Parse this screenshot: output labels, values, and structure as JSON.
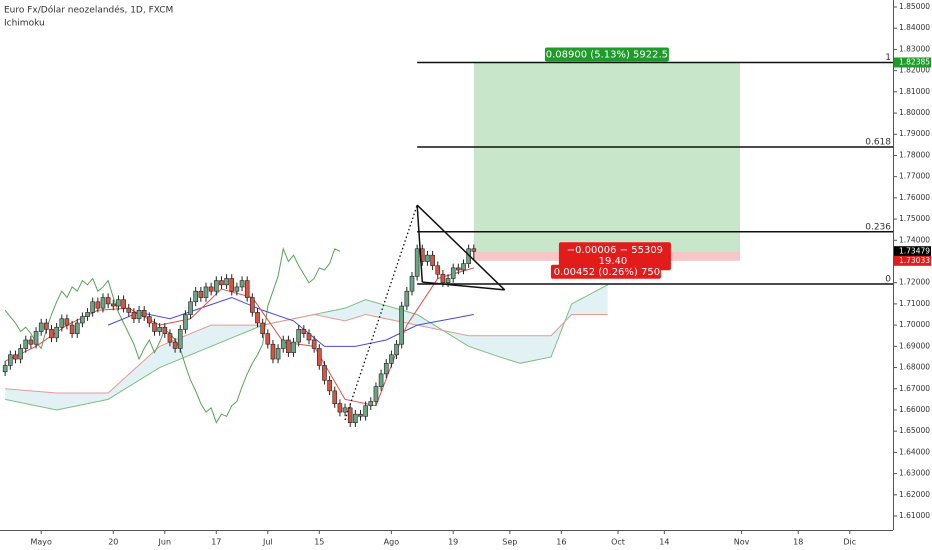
{
  "chart_data": {
    "type": "candlestick",
    "title": "Euro Fx/Dólar neozelandés, 1D, FXCM",
    "subtitle": "Ichimoku",
    "up_color": "#6ba583",
    "down_color": "#d75442",
    "xlim": [
      -1,
      172.4
    ],
    "ylim": [
      1.6034,
      1.8533
    ],
    "grid": false,
    "xticks": [
      {
        "value": 7,
        "label": "Mayo"
      },
      {
        "value": 21,
        "label": "20"
      },
      {
        "value": 31,
        "label": "Jun"
      },
      {
        "value": 41,
        "label": "17"
      },
      {
        "value": 51,
        "label": "Jul"
      },
      {
        "value": 61,
        "label": "15"
      },
      {
        "value": 75,
        "label": "Ago"
      },
      {
        "value": 87,
        "label": "19"
      },
      {
        "value": 98,
        "label": "Sep"
      },
      {
        "value": 108,
        "label": "16"
      },
      {
        "value": 119,
        "label": "Oct"
      },
      {
        "value": 128,
        "label": "14"
      },
      {
        "value": 143,
        "label": "Nov"
      },
      {
        "value": 154,
        "label": "18"
      },
      {
        "value": 164,
        "label": "Dic"
      }
    ],
    "yticks": [
      {
        "value": 1.61,
        "label": "1.61000"
      },
      {
        "value": 1.62,
        "label": "1.62000"
      },
      {
        "value": 1.63,
        "label": "1.63000"
      },
      {
        "value": 1.64,
        "label": "1.64000"
      },
      {
        "value": 1.65,
        "label": "1.65000"
      },
      {
        "value": 1.66,
        "label": "1.66000"
      },
      {
        "value": 1.67,
        "label": "1.67000"
      },
      {
        "value": 1.68,
        "label": "1.68000"
      },
      {
        "value": 1.69,
        "label": "1.69000"
      },
      {
        "value": 1.7,
        "label": "1.70000"
      },
      {
        "value": 1.71,
        "label": "1.71000"
      },
      {
        "value": 1.72,
        "label": "1.72000"
      },
      {
        "value": 1.73,
        "label": "1.73000"
      },
      {
        "value": 1.74,
        "label": "1.74000"
      },
      {
        "value": 1.75,
        "label": "1.75000"
      },
      {
        "value": 1.76,
        "label": "1.76000"
      },
      {
        "value": 1.77,
        "label": "1.77000"
      },
      {
        "value": 1.78,
        "label": "1.78000"
      },
      {
        "value": 1.79,
        "label": "1.79000"
      },
      {
        "value": 1.8,
        "label": "1.80000"
      },
      {
        "value": 1.81,
        "label": "1.81000"
      },
      {
        "value": 1.82,
        "label": "1.82000"
      },
      {
        "value": 1.83,
        "label": "1.83000"
      },
      {
        "value": 1.84,
        "label": "1.84000"
      },
      {
        "value": 1.85,
        "label": "1.85000"
      }
    ],
    "candles": [
      [
        1.678,
        1.683,
        1.676,
        1.681
      ],
      [
        1.681,
        1.688,
        1.679,
        1.686
      ],
      [
        1.686,
        1.688,
        1.682,
        1.684
      ],
      [
        1.684,
        1.691,
        1.682,
        1.689
      ],
      [
        1.689,
        1.695,
        1.687,
        1.693
      ],
      [
        1.693,
        1.695,
        1.689,
        1.691
      ],
      [
        1.691,
        1.699,
        1.689,
        1.697
      ],
      [
        1.697,
        1.703,
        1.695,
        1.701
      ],
      [
        1.701,
        1.703,
        1.696,
        1.698
      ],
      [
        1.698,
        1.7,
        1.692,
        1.694
      ],
      [
        1.694,
        1.701,
        1.692,
        1.699
      ],
      [
        1.699,
        1.705,
        1.697,
        1.703
      ],
      [
        1.703,
        1.705,
        1.698,
        1.7
      ],
      [
        1.7,
        1.702,
        1.694,
        1.696
      ],
      [
        1.696,
        1.703,
        1.694,
        1.701
      ],
      [
        1.701,
        1.706,
        1.699,
        1.704
      ],
      [
        1.704,
        1.708,
        1.702,
        1.706
      ],
      [
        1.706,
        1.713,
        1.704,
        1.711
      ],
      [
        1.711,
        1.713,
        1.706,
        1.708
      ],
      [
        1.708,
        1.715,
        1.706,
        1.713
      ],
      [
        1.713,
        1.715,
        1.708,
        1.71
      ],
      [
        1.71,
        1.712,
        1.707,
        1.709
      ],
      [
        1.709,
        1.714,
        1.707,
        1.712
      ],
      [
        1.712,
        1.714,
        1.706,
        1.708
      ],
      [
        1.708,
        1.71,
        1.704,
        1.706
      ],
      [
        1.706,
        1.708,
        1.701,
        1.703
      ],
      [
        1.703,
        1.709,
        1.701,
        1.707
      ],
      [
        1.707,
        1.709,
        1.702,
        1.704
      ],
      [
        1.704,
        1.706,
        1.699,
        1.701
      ],
      [
        1.701,
        1.703,
        1.695,
        1.697
      ],
      [
        1.697,
        1.701,
        1.695,
        1.699
      ],
      [
        1.699,
        1.701,
        1.694,
        1.696
      ],
      [
        1.696,
        1.698,
        1.69,
        1.692
      ],
      [
        1.692,
        1.694,
        1.687,
        1.689
      ],
      [
        1.689,
        1.7,
        1.687,
        1.698
      ],
      [
        1.698,
        1.707,
        1.696,
        1.705
      ],
      [
        1.705,
        1.713,
        1.703,
        1.711
      ],
      [
        1.711,
        1.718,
        1.709,
        1.716
      ],
      [
        1.716,
        1.718,
        1.711,
        1.713
      ],
      [
        1.713,
        1.72,
        1.711,
        1.718
      ],
      [
        1.718,
        1.72,
        1.714,
        1.716
      ],
      [
        1.716,
        1.723,
        1.714,
        1.721
      ],
      [
        1.721,
        1.723,
        1.717,
        1.719
      ],
      [
        1.719,
        1.724,
        1.717,
        1.722
      ],
      [
        1.722,
        1.724,
        1.714,
        1.716
      ],
      [
        1.716,
        1.72,
        1.714,
        1.718
      ],
      [
        1.718,
        1.723,
        1.716,
        1.721
      ],
      [
        1.721,
        1.723,
        1.711,
        1.713
      ],
      [
        1.713,
        1.715,
        1.704,
        1.706
      ],
      [
        1.706,
        1.708,
        1.699,
        1.701
      ],
      [
        1.701,
        1.703,
        1.694,
        1.696
      ],
      [
        1.696,
        1.698,
        1.689,
        1.691
      ],
      [
        1.691,
        1.693,
        1.682,
        1.684
      ],
      [
        1.684,
        1.691,
        1.682,
        1.689
      ],
      [
        1.689,
        1.695,
        1.687,
        1.693
      ],
      [
        1.693,
        1.695,
        1.685,
        1.687
      ],
      [
        1.687,
        1.694,
        1.685,
        1.692
      ],
      [
        1.692,
        1.7,
        1.69,
        1.698
      ],
      [
        1.698,
        1.7,
        1.694,
        1.696
      ],
      [
        1.696,
        1.698,
        1.691,
        1.693
      ],
      [
        1.693,
        1.695,
        1.687,
        1.689
      ],
      [
        1.689,
        1.691,
        1.679,
        1.681
      ],
      [
        1.681,
        1.683,
        1.672,
        1.674
      ],
      [
        1.674,
        1.676,
        1.667,
        1.669
      ],
      [
        1.669,
        1.671,
        1.661,
        1.663
      ],
      [
        1.663,
        1.665,
        1.657,
        1.659
      ],
      [
        1.659,
        1.663,
        1.657,
        1.661
      ],
      [
        1.661,
        1.663,
        1.652,
        1.654
      ],
      [
        1.654,
        1.66,
        1.652,
        1.658
      ],
      [
        1.658,
        1.66,
        1.655,
        1.657
      ],
      [
        1.657,
        1.664,
        1.655,
        1.662
      ],
      [
        1.662,
        1.666,
        1.66,
        1.664
      ],
      [
        1.664,
        1.673,
        1.662,
        1.671
      ],
      [
        1.671,
        1.679,
        1.669,
        1.677
      ],
      [
        1.677,
        1.684,
        1.675,
        1.682
      ],
      [
        1.682,
        1.688,
        1.68,
        1.686
      ],
      [
        1.686,
        1.693,
        1.684,
        1.691
      ],
      [
        1.691,
        1.711,
        1.689,
        1.709
      ],
      [
        1.709,
        1.718,
        1.707,
        1.716
      ],
      [
        1.716,
        1.725,
        1.714,
        1.723
      ],
      [
        1.723,
        1.738,
        1.721,
        1.736
      ],
      [
        1.736,
        1.738,
        1.728,
        1.73
      ],
      [
        1.73,
        1.735,
        1.728,
        1.733
      ],
      [
        1.733,
        1.735,
        1.726,
        1.728
      ],
      [
        1.728,
        1.73,
        1.722,
        1.724
      ],
      [
        1.724,
        1.726,
        1.718,
        1.72
      ],
      [
        1.72,
        1.724,
        1.718,
        1.722
      ],
      [
        1.722,
        1.729,
        1.72,
        1.727
      ],
      [
        1.727,
        1.729,
        1.724,
        1.726
      ],
      [
        1.726,
        1.731,
        1.724,
        1.729
      ],
      [
        1.729,
        1.738,
        1.727,
        1.736
      ],
      [
        1.736,
        1.738,
        1.731,
        1.73479
      ]
    ],
    "tenkan": {
      "color": "#e0504f",
      "x": [
        0,
        6,
        12,
        18,
        24,
        30,
        36,
        42,
        48,
        54,
        60,
        66,
        72,
        78,
        84,
        91
      ],
      "values": [
        1.683,
        1.69,
        1.7,
        1.707,
        1.708,
        1.7,
        1.703,
        1.717,
        1.713,
        1.692,
        1.69,
        1.665,
        1.662,
        1.7,
        1.722,
        1.727
      ]
    },
    "kijun": {
      "color": "#4b4bd6",
      "x": [
        20,
        26,
        32,
        38,
        44,
        50,
        56,
        62,
        68,
        74,
        80,
        91
      ],
      "values": [
        1.7,
        1.706,
        1.703,
        1.708,
        1.713,
        1.707,
        1.702,
        1.69,
        1.69,
        1.693,
        1.7,
        1.705
      ]
    },
    "chikou_color": "#5aa35a",
    "cloud_color": "#d5ecef",
    "span_a": {
      "color": "#7fbf7f",
      "x": [
        0,
        10,
        20,
        30,
        40,
        50,
        60,
        66,
        70,
        80,
        90,
        96,
        100,
        106,
        110,
        117
      ],
      "values": [
        1.665,
        1.66,
        1.665,
        1.68,
        1.69,
        1.7,
        1.705,
        1.708,
        1.712,
        1.705,
        1.69,
        1.685,
        1.682,
        1.685,
        1.71,
        1.719
      ]
    },
    "span_b": {
      "color": "#e59999",
      "x": [
        0,
        10,
        20,
        30,
        40,
        50,
        60,
        66,
        70,
        80,
        90,
        96,
        100,
        106,
        110,
        117
      ],
      "values": [
        1.67,
        1.668,
        1.668,
        1.69,
        1.7,
        1.7,
        1.705,
        1.702,
        1.705,
        1.7,
        1.695,
        1.695,
        1.695,
        1.695,
        1.705,
        1.705
      ]
    },
    "fib": {
      "start": 80,
      "levels": [
        {
          "ratio": 1,
          "price": 1.82385
        },
        {
          "ratio": 0.618,
          "price": 1.784
        },
        {
          "ratio": 0.236,
          "price": 1.744
        },
        {
          "ratio": 0,
          "price": 1.7194
        }
      ]
    },
    "triangle": [
      [
        80,
        1.7566
      ],
      [
        97,
        1.7166
      ],
      [
        81,
        1.7203
      ]
    ],
    "trendline": [
      [
        66,
        1.6553
      ],
      [
        80,
        1.7566
      ]
    ],
    "position": {
      "start": 91,
      "end": 142.7,
      "entry": 1.73485,
      "stop": 1.73033,
      "target": 1.82385,
      "target_label": "0.08900 (5.13%) 5922.5",
      "pnl_label": "−0.00006 − 55309",
      "extra_label": "19.40",
      "stop_label": "0.00452 (0.26%) 750"
    },
    "price_tags": [
      {
        "value": 1.82385,
        "color": "#1e9c2a"
      },
      {
        "value": 1.73485,
        "color": "#444444"
      },
      {
        "value": 1.73479,
        "color": "#000000"
      },
      {
        "value": 1.73033,
        "color": "#e21b1b"
      }
    ]
  }
}
